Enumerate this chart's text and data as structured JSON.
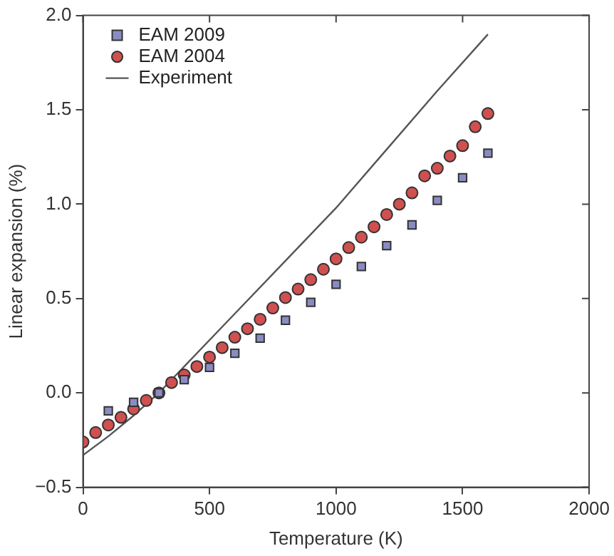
{
  "chart_data": {
    "type": "scatter",
    "xlabel": "Temperature (K)",
    "ylabel": "Linear expansion (%)",
    "xlim": [
      0,
      2000
    ],
    "xticks": [
      0,
      500,
      1000,
      1500,
      2000
    ],
    "ylim": [
      -0.5,
      2.0
    ],
    "yticks": [
      {
        "value": -0.5,
        "label": "−0.5"
      },
      {
        "value": 0,
        "label": "0.0"
      },
      {
        "value": 0.5,
        "label": "0.5"
      },
      {
        "value": 1,
        "label": "1.0"
      },
      {
        "value": 1.5,
        "label": "1.5"
      },
      {
        "value": 2,
        "label": "2.0"
      }
    ],
    "grid": false,
    "legend": "top left",
    "series": [
      {
        "name": "EAM 2009",
        "marker": "square",
        "color": "#8b8bc4",
        "x": [
          100,
          200,
          300,
          400,
          500,
          600,
          700,
          800,
          900,
          1000,
          1100,
          1200,
          1300,
          1400,
          1500,
          1600
        ],
        "values": [
          -0.095,
          -0.05,
          0,
          0.07,
          0.135,
          0.21,
          0.29,
          0.385,
          0.48,
          0.575,
          0.67,
          0.78,
          0.89,
          1.02,
          1.14,
          1.27
        ]
      },
      {
        "name": "EAM 2004",
        "marker": "circle",
        "color": "#d05050",
        "x": [
          0,
          50,
          100,
          150,
          200,
          250,
          300,
          350,
          400,
          450,
          500,
          550,
          600,
          650,
          700,
          750,
          800,
          850,
          900,
          950,
          1000,
          1050,
          1100,
          1150,
          1200,
          1250,
          1300,
          1350,
          1400,
          1450,
          1500,
          1550,
          1600
        ],
        "values": [
          -0.26,
          -0.21,
          -0.17,
          -0.13,
          -0.085,
          -0.04,
          0,
          0.055,
          0.095,
          0.14,
          0.19,
          0.24,
          0.295,
          0.34,
          0.39,
          0.45,
          0.505,
          0.55,
          0.6,
          0.655,
          0.71,
          0.77,
          0.825,
          0.88,
          0.945,
          1.0,
          1.06,
          1.15,
          1.19,
          1.255,
          1.31,
          1.41,
          1.48
        ]
      },
      {
        "name": "Experiment",
        "type": "line",
        "marker": "none",
        "line_style": "solid",
        "color": "#555555",
        "x": [
          0,
          100,
          200,
          300,
          400,
          600,
          800,
          1000,
          1200,
          1400,
          1600
        ],
        "values": [
          -0.33,
          -0.23,
          -0.12,
          0,
          0.14,
          0.42,
          0.7,
          0.98,
          1.29,
          1.6,
          1.9
        ]
      }
    ]
  }
}
